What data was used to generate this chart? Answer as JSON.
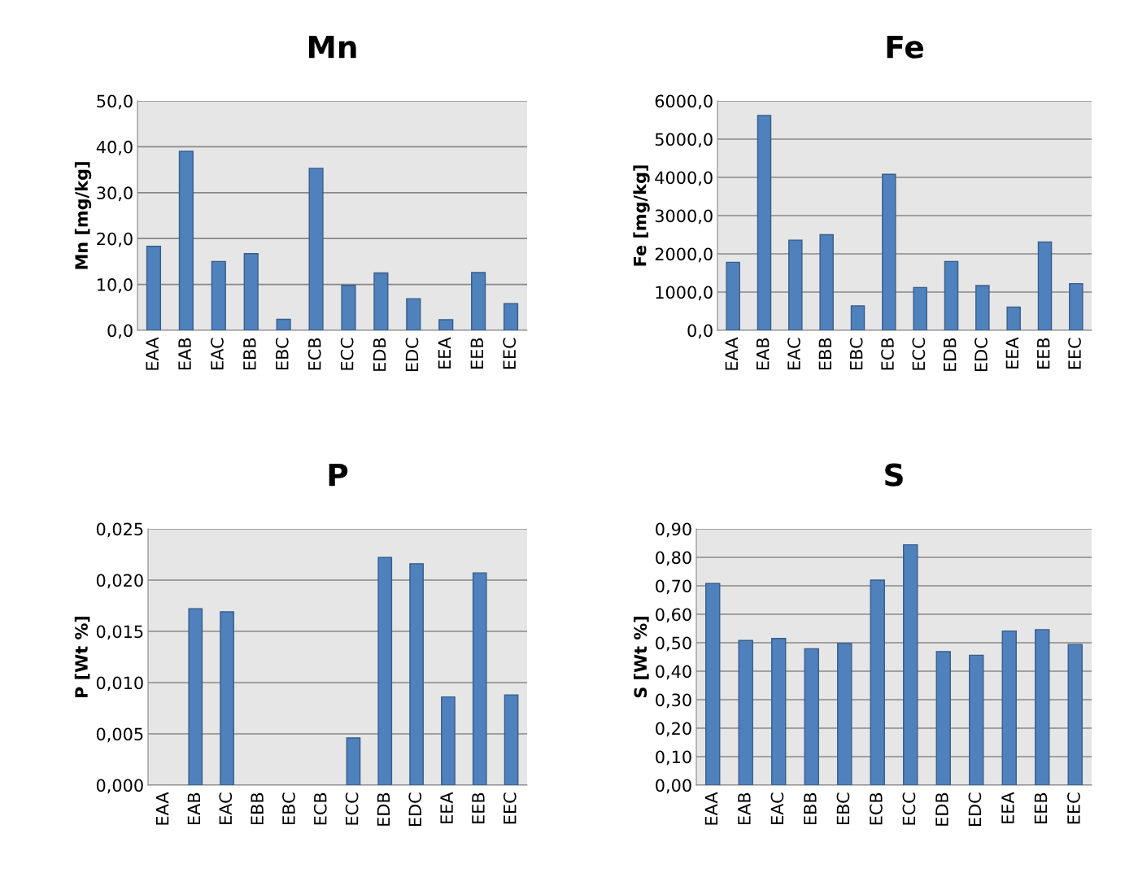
{
  "chart_data": [
    {
      "type": "bar",
      "title": "Mn",
      "ylabel": "Mn [mg/kg]",
      "categories": [
        "EAA",
        "EAB",
        "EAC",
        "EBB",
        "EBC",
        "ECB",
        "ECC",
        "EDB",
        "EDC",
        "EEA",
        "EEB",
        "EEC"
      ],
      "color": "#4f81bd",
      "values": [
        18.3,
        39.0,
        15.0,
        16.7,
        2.4,
        35.3,
        9.8,
        12.5,
        6.9,
        2.3,
        12.6,
        5.8
      ],
      "ylim": [
        0,
        50
      ],
      "yticks": [
        {
          "value": 0,
          "label": "0,0"
        },
        {
          "value": 10,
          "label": "10,0"
        },
        {
          "value": 20,
          "label": "20,0"
        },
        {
          "value": 30,
          "label": "30,0"
        },
        {
          "value": 40,
          "label": "40,0"
        },
        {
          "value": 50,
          "label": "50,0"
        }
      ],
      "grid": "y",
      "legend": false
    },
    {
      "type": "bar",
      "title": "Fe",
      "ylabel": "Fe [mg/kg]",
      "categories": [
        "EAA",
        "EAB",
        "EAC",
        "EBB",
        "EBC",
        "ECB",
        "ECC",
        "EDB",
        "EDC",
        "EEA",
        "EEB",
        "EEC"
      ],
      "color": "#4f81bd",
      "values": [
        1780,
        5620,
        2360,
        2500,
        640,
        4080,
        1120,
        1800,
        1170,
        610,
        2310,
        1220
      ],
      "ylim": [
        0,
        6000
      ],
      "yticks": [
        {
          "value": 0,
          "label": "0,0"
        },
        {
          "value": 1000,
          "label": "1000,0"
        },
        {
          "value": 2000,
          "label": "2000,0"
        },
        {
          "value": 3000,
          "label": "3000,0"
        },
        {
          "value": 4000,
          "label": "4000,0"
        },
        {
          "value": 5000,
          "label": "5000,0"
        },
        {
          "value": 6000,
          "label": "6000,0"
        }
      ],
      "grid": "y",
      "legend": false
    },
    {
      "type": "bar",
      "title": "P",
      "ylabel": "P [Wt %]",
      "categories": [
        "EAA",
        "EAB",
        "EAC",
        "EBB",
        "EBC",
        "ECB",
        "ECC",
        "EDB",
        "EDC",
        "EEA",
        "EEB",
        "EEC"
      ],
      "color": "#4f81bd",
      "values": [
        null,
        0.0172,
        0.0169,
        null,
        null,
        null,
        0.0046,
        0.0222,
        0.0216,
        0.0086,
        0.0207,
        0.0088
      ],
      "ylim": [
        0,
        0.025
      ],
      "yticks": [
        {
          "value": 0,
          "label": "0,000"
        },
        {
          "value": 0.005,
          "label": "0,005"
        },
        {
          "value": 0.01,
          "label": "0,010"
        },
        {
          "value": 0.015,
          "label": "0,015"
        },
        {
          "value": 0.02,
          "label": "0,020"
        },
        {
          "value": 0.025,
          "label": "0,025"
        }
      ],
      "grid": "y",
      "legend": false
    },
    {
      "type": "bar",
      "title": "S",
      "ylabel": "S [Wt %]",
      "categories": [
        "EAA",
        "EAB",
        "EAC",
        "EBB",
        "EBC",
        "ECB",
        "ECC",
        "EDB",
        "EDC",
        "EEA",
        "EEB",
        "EEC"
      ],
      "color": "#4f81bd",
      "values": [
        0.708,
        0.508,
        0.515,
        0.479,
        0.497,
        0.72,
        0.844,
        0.469,
        0.456,
        0.541,
        0.546,
        0.494
      ],
      "ylim": [
        0,
        0.9
      ],
      "yticks": [
        {
          "value": 0,
          "label": "0,00"
        },
        {
          "value": 0.1,
          "label": "0,10"
        },
        {
          "value": 0.2,
          "label": "0,20"
        },
        {
          "value": 0.3,
          "label": "0,30"
        },
        {
          "value": 0.4,
          "label": "0,40"
        },
        {
          "value": 0.5,
          "label": "0,50"
        },
        {
          "value": 0.6,
          "label": "0,60"
        },
        {
          "value": 0.7,
          "label": "0,70"
        },
        {
          "value": 0.8,
          "label": "0,80"
        },
        {
          "value": 0.9,
          "label": "0,90"
        }
      ],
      "grid": "y",
      "legend": false
    }
  ]
}
